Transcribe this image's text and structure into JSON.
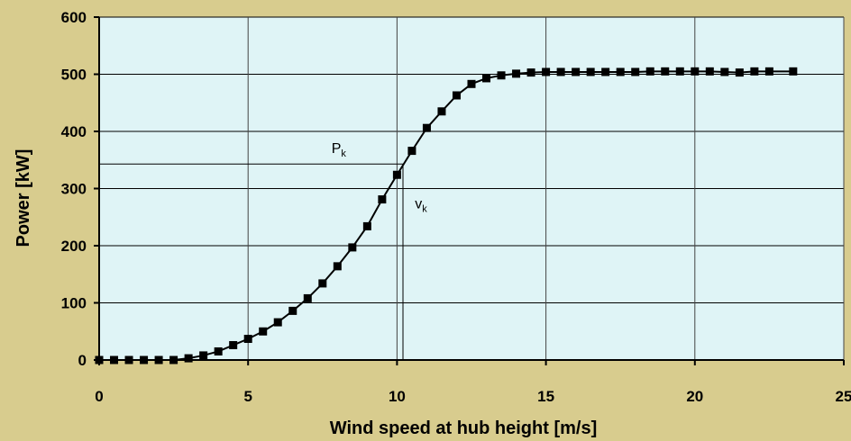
{
  "chart_data": {
    "type": "line",
    "title": "",
    "xlabel": "Wind speed at hub height [m/s]",
    "ylabel": "Power [kW]",
    "xlim": [
      0,
      25
    ],
    "ylim": [
      0,
      600
    ],
    "xticks": [
      0,
      5,
      10,
      15,
      20,
      25
    ],
    "yticks": [
      0,
      100,
      200,
      300,
      400,
      500,
      600
    ],
    "grid": true,
    "legend": "none",
    "colors": {
      "plot_bg": "#dff4f6",
      "figure_bg": "#d8cc8e",
      "line": "#000000"
    },
    "series": [
      {
        "marker": "square",
        "x": [
          0.0,
          0.5,
          1.0,
          1.5,
          2.0,
          2.5,
          3.0,
          3.5,
          4.0,
          4.5,
          5.0,
          5.5,
          6.0,
          6.5,
          7.0,
          7.5,
          8.0,
          8.5,
          9.0,
          9.5,
          10.0,
          10.5,
          11.0,
          11.5,
          12.0,
          12.5,
          13.0,
          13.5,
          14.0,
          14.5,
          15.0,
          15.5,
          16.0,
          16.5,
          17.0,
          17.5,
          18.0,
          18.5,
          19.0,
          19.5,
          20.0,
          20.5,
          21.0,
          21.5,
          22.0,
          22.5,
          23.3
        ],
        "y": [
          0,
          0,
          0,
          0,
          0,
          0,
          3,
          8,
          15,
          26,
          37,
          50,
          66,
          86,
          108,
          134,
          164,
          197,
          234,
          281,
          324,
          366,
          406,
          435,
          463,
          483,
          493,
          498,
          501,
          503,
          504,
          504,
          504,
          504,
          504,
          504,
          504,
          505,
          505,
          505,
          505,
          505,
          504,
          503,
          505,
          505,
          505
        ]
      }
    ],
    "reference_lines": {
      "horizontal": [
        343
      ],
      "vertical": [
        10.2
      ]
    },
    "annotations": [
      {
        "text": "P",
        "sub": "k",
        "x": 7.8,
        "y": 362
      },
      {
        "text": "v",
        "sub": "k",
        "x": 10.6,
        "y": 265
      }
    ]
  }
}
